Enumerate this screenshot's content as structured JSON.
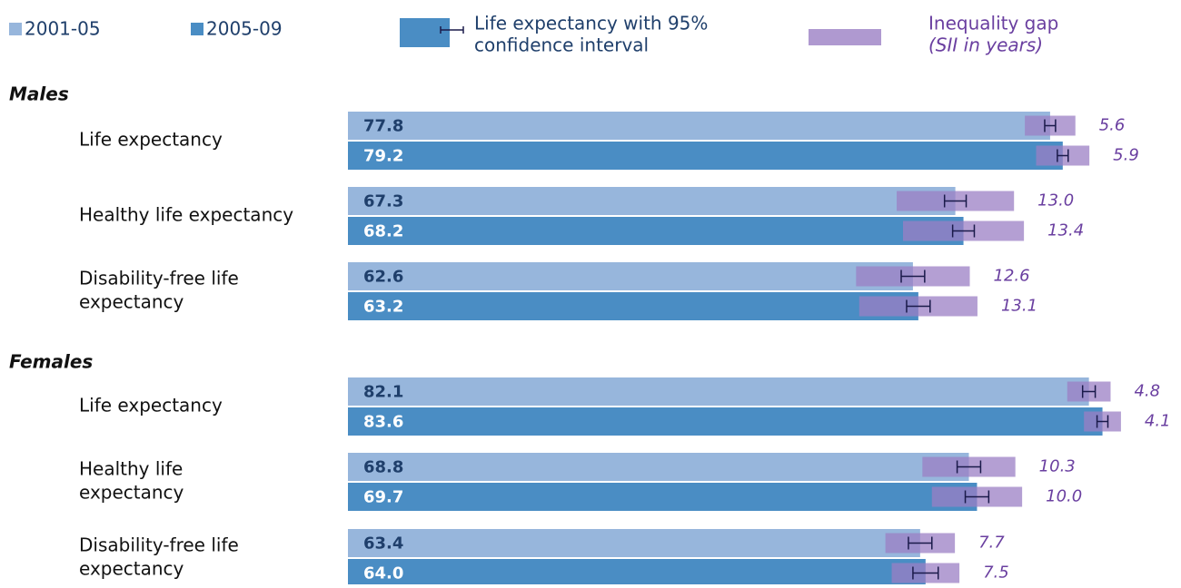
{
  "chart_data": {
    "type": "bar",
    "xlim": [
      0,
      92
    ],
    "series": [
      {
        "name": "2001-05",
        "color": "#97b6dc",
        "label_color": "#1f3f6b"
      },
      {
        "name": "2005-09",
        "color": "#4a8dc4",
        "label_color": "#ffffff"
      }
    ],
    "ci_legend": [
      "Life expectancy with 95%",
      "confidence interval"
    ],
    "ci_color": "#1a1a4a",
    "gap_legend": "Inequality gap",
    "gap_legend_sub": "(SII in years)",
    "gap_color": "#9b7fc4",
    "panels": [
      {
        "name": "Males",
        "categories": [
          [
            "Life expectancy"
          ],
          [
            "Healthy life expectancy"
          ],
          [
            "Disability-free life",
            "expectancy"
          ]
        ],
        "values": [
          [
            77.8,
            79.2
          ],
          [
            67.3,
            68.2
          ],
          [
            62.6,
            63.2
          ]
        ],
        "value_labels": [
          [
            "77.8",
            "79.2"
          ],
          [
            "67.3",
            "68.2"
          ],
          [
            "62.6",
            "63.2"
          ]
        ],
        "ci": [
          [
            0.6,
            0.6
          ],
          [
            1.2,
            1.2
          ],
          [
            1.3,
            1.3
          ]
        ],
        "gap": [
          [
            5.6,
            5.9
          ],
          [
            13.0,
            13.4
          ],
          [
            12.6,
            13.1
          ]
        ],
        "gap_labels": [
          [
            "5.6",
            "5.9"
          ],
          [
            "13.0",
            "13.4"
          ],
          [
            "12.6",
            "13.1"
          ]
        ]
      },
      {
        "name": "Females",
        "categories": [
          [
            "Life expectancy"
          ],
          [
            "Healthy life",
            "expectancy"
          ],
          [
            "Disability-free life",
            "expectancy"
          ]
        ],
        "values": [
          [
            82.1,
            83.6
          ],
          [
            68.8,
            69.7
          ],
          [
            63.4,
            64.0
          ]
        ],
        "value_labels": [
          [
            "82.1",
            "83.6"
          ],
          [
            "68.8",
            "69.7"
          ],
          [
            "63.4",
            "64.0"
          ]
        ],
        "ci": [
          [
            0.7,
            0.6
          ],
          [
            1.3,
            1.3
          ],
          [
            1.3,
            1.4
          ]
        ],
        "gap": [
          [
            4.8,
            4.1
          ],
          [
            10.3,
            10.0
          ],
          [
            7.7,
            7.5
          ]
        ],
        "gap_labels": [
          [
            "4.8",
            "4.1"
          ],
          [
            "10.3",
            "10.0"
          ],
          [
            "7.7",
            "7.5"
          ]
        ]
      }
    ]
  }
}
